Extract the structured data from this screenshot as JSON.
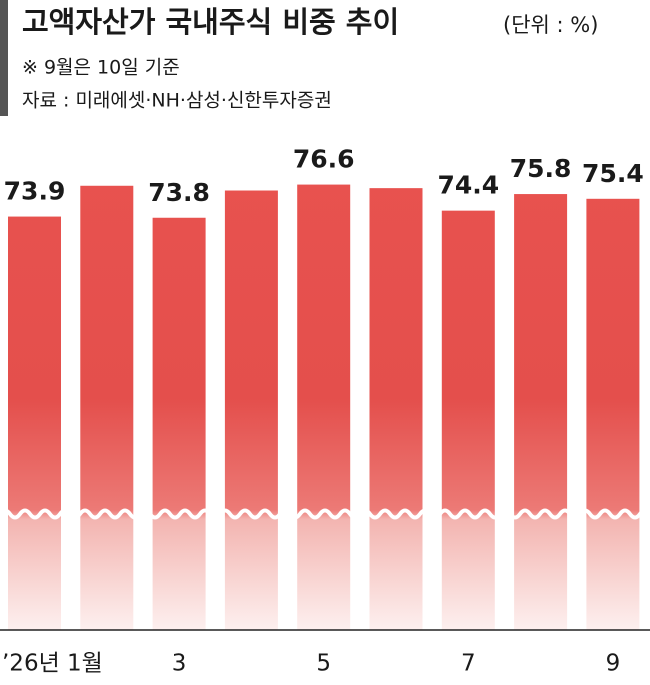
{
  "chart_data": {
    "type": "bar",
    "title": "고액자산가 국내주식 비중 추이",
    "unit": "(단위 : %)",
    "note": "※ 9월은 10일 기준",
    "source": "자료 : 미래에셋·NH·삼성·신한투자증권",
    "categories": [
      "’26년 1월",
      null,
      "3",
      null,
      "5",
      null,
      "7",
      null,
      "9"
    ],
    "values": [
      73.9,
      76.5,
      73.8,
      76.1,
      76.6,
      76.3,
      74.4,
      75.8,
      75.4
    ],
    "value_labels": [
      "73.9",
      null,
      "73.8",
      null,
      "76.6",
      null,
      "74.4",
      "75.8",
      "75.4"
    ],
    "color": "#e8524f",
    "ylim": [
      39,
      78
    ]
  }
}
